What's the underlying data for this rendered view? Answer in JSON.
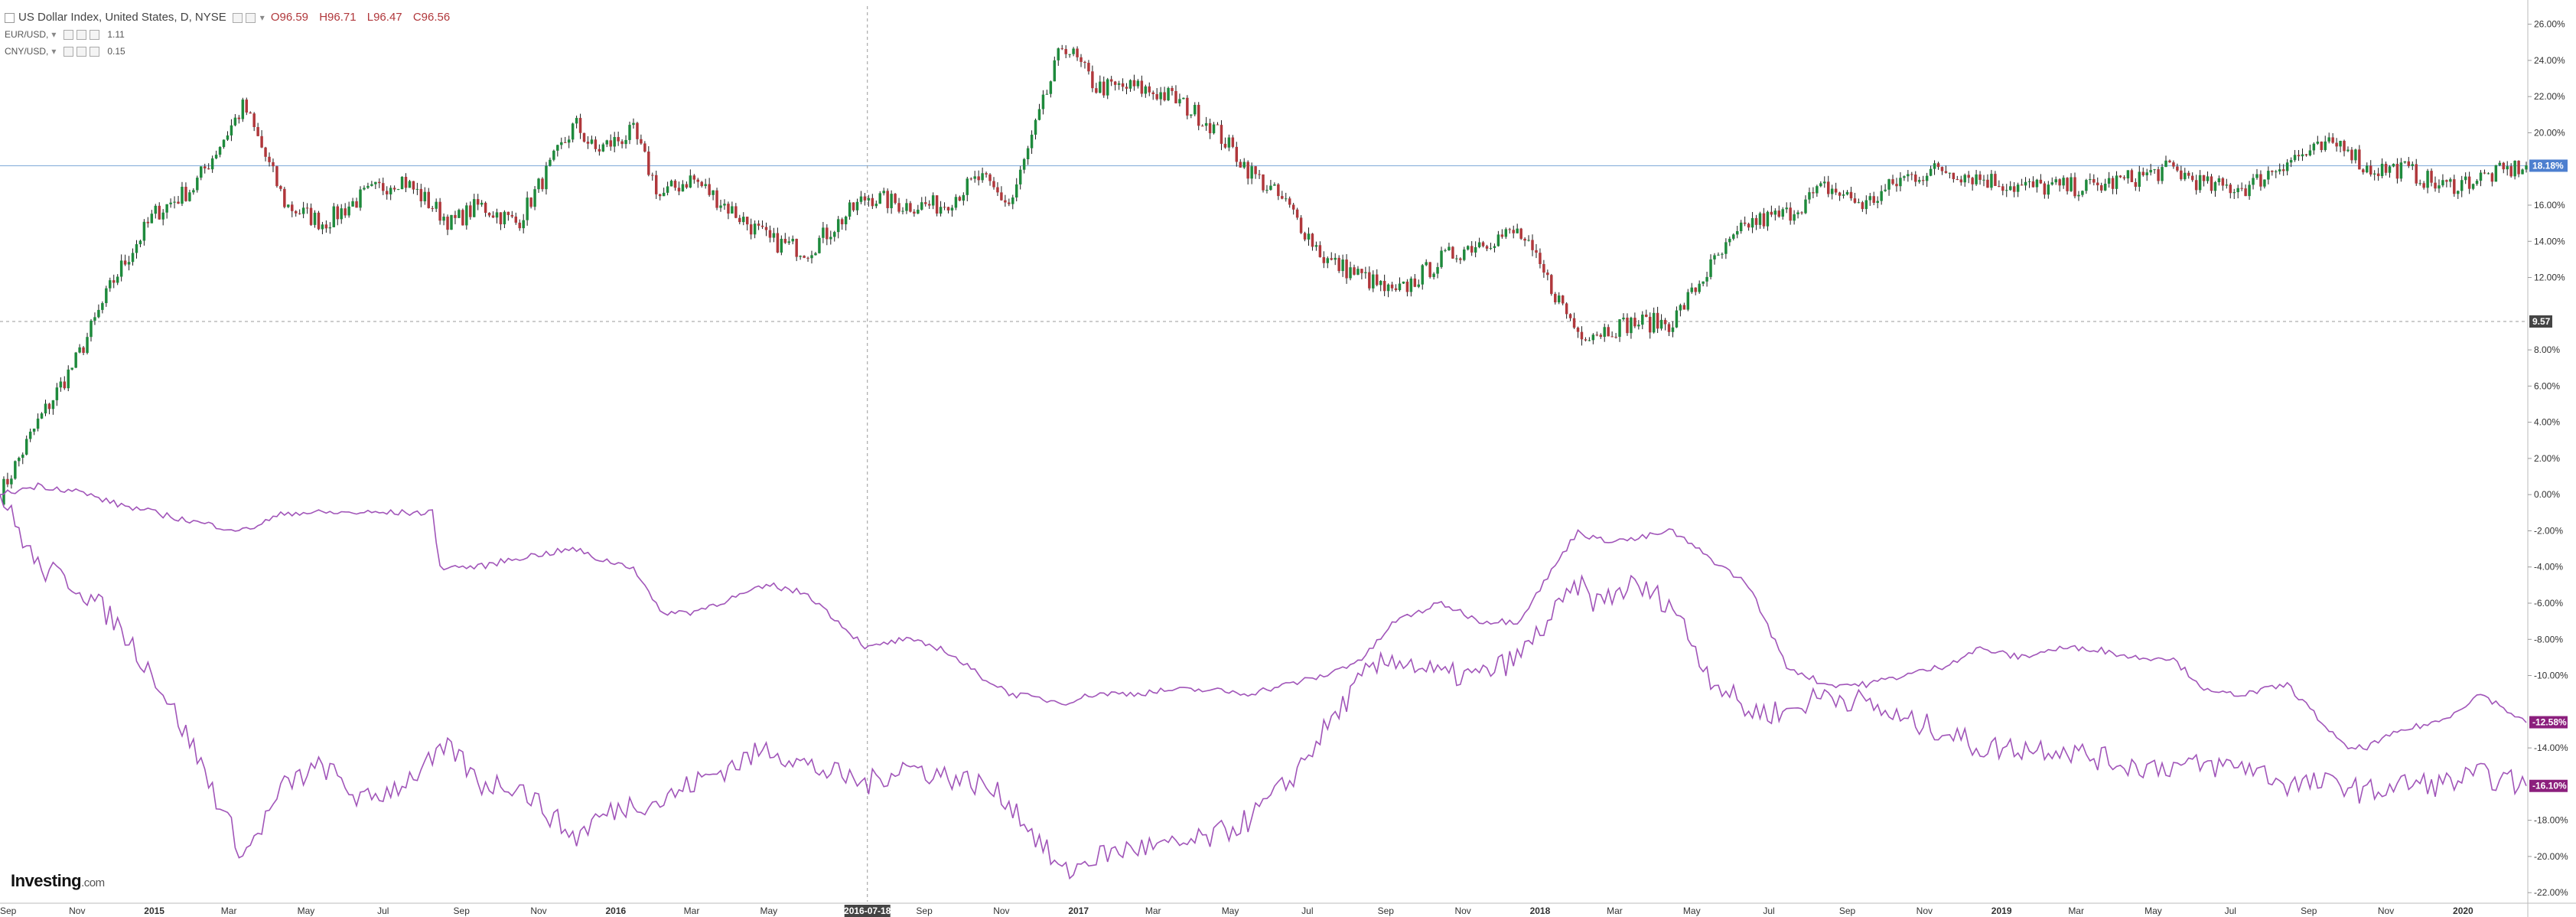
{
  "legend": {
    "symbol": "US Dollar Index, United States, D, NYSE",
    "ohlc": {
      "open": "O96.59",
      "high": "H96.71",
      "low": "L96.47",
      "close": "C96.56"
    },
    "compare": [
      {
        "name": "EUR/USD,",
        "value": "1.11"
      },
      {
        "name": "CNY/USD,",
        "value": "0.15"
      }
    ]
  },
  "logo": {
    "brand": "Investing",
    "suffix": ".com"
  },
  "colors": {
    "up": "#1e8a3c",
    "down": "#b0373b",
    "compare": "#a155b9",
    "crosshair": "#9a9a9a",
    "last_line": "#8fb4dd",
    "last_tag": "#4d7fcf",
    "cmp_tag": "#8c1f7d",
    "cross_tag": "#444444"
  },
  "chart_data": {
    "type": "line",
    "title": "",
    "xlabel": "",
    "ylabel": "",
    "y_unit": "%",
    "ylim": [
      -22.5,
      27
    ],
    "xlim": [
      "2014-09-01",
      "2020-02-20"
    ],
    "grid": false,
    "x_ticks": [
      {
        "label": "Sep",
        "date": "2014-09-01"
      },
      {
        "label": "Nov",
        "date": "2014-11-01"
      },
      {
        "label": "2015",
        "date": "2015-01-01"
      },
      {
        "label": "Mar",
        "date": "2015-03-01"
      },
      {
        "label": "May",
        "date": "2015-05-01"
      },
      {
        "label": "Jul",
        "date": "2015-07-01"
      },
      {
        "label": "Sep",
        "date": "2015-09-01"
      },
      {
        "label": "Nov",
        "date": "2015-11-01"
      },
      {
        "label": "2016",
        "date": "2016-01-01"
      },
      {
        "label": "Mar",
        "date": "2016-03-01"
      },
      {
        "label": "May",
        "date": "2016-05-01"
      },
      {
        "label": "Sep",
        "date": "2016-09-01"
      },
      {
        "label": "Nov",
        "date": "2016-11-01"
      },
      {
        "label": "2017",
        "date": "2017-01-01"
      },
      {
        "label": "Mar",
        "date": "2017-03-01"
      },
      {
        "label": "May",
        "date": "2017-05-01"
      },
      {
        "label": "Jul",
        "date": "2017-07-01"
      },
      {
        "label": "Sep",
        "date": "2017-09-01"
      },
      {
        "label": "Nov",
        "date": "2017-11-01"
      },
      {
        "label": "2018",
        "date": "2018-01-01"
      },
      {
        "label": "Mar",
        "date": "2018-03-01"
      },
      {
        "label": "May",
        "date": "2018-05-01"
      },
      {
        "label": "Jul",
        "date": "2018-07-01"
      },
      {
        "label": "Sep",
        "date": "2018-09-01"
      },
      {
        "label": "Nov",
        "date": "2018-11-01"
      },
      {
        "label": "2019",
        "date": "2019-01-01"
      },
      {
        "label": "Mar",
        "date": "2019-03-01"
      },
      {
        "label": "May",
        "date": "2019-05-01"
      },
      {
        "label": "Jul",
        "date": "2019-07-01"
      },
      {
        "label": "Sep",
        "date": "2019-09-01"
      },
      {
        "label": "Nov",
        "date": "2019-11-01"
      },
      {
        "label": "2020",
        "date": "2020-01-01"
      }
    ],
    "y_ticks": [
      {
        "label": "-22.00%",
        "value": -22
      },
      {
        "label": "-20.00%",
        "value": -20
      },
      {
        "label": "-18.00%",
        "value": -18
      },
      {
        "label": "-14.00%",
        "value": -14
      },
      {
        "label": "-10.00%",
        "value": -10
      },
      {
        "label": "-8.00%",
        "value": -8
      },
      {
        "label": "-6.00%",
        "value": -6
      },
      {
        "label": "-4.00%",
        "value": -4
      },
      {
        "label": "-2.00%",
        "value": -2
      },
      {
        "label": "0.00%",
        "value": 0
      },
      {
        "label": "2.00%",
        "value": 2
      },
      {
        "label": "4.00%",
        "value": 4
      },
      {
        "label": "6.00%",
        "value": 6
      },
      {
        "label": "8.00%",
        "value": 8
      },
      {
        "label": "12.00%",
        "value": 12
      },
      {
        "label": "14.00%",
        "value": 14
      },
      {
        "label": "16.00%",
        "value": 16
      },
      {
        "label": "20.00%",
        "value": 20
      },
      {
        "label": "22.00%",
        "value": 22
      },
      {
        "label": "24.00%",
        "value": 24
      },
      {
        "label": "26.00%",
        "value": 26
      }
    ],
    "crosshair": {
      "date": "2016-07-18",
      "date_label": "2016-07-18",
      "value": 9.57,
      "value_label": "9.57"
    },
    "last_value_tags": [
      {
        "label": "18.18%",
        "value": 18.18,
        "kind": "main"
      },
      {
        "label": "-12.58%",
        "value": -12.58,
        "kind": "compare"
      },
      {
        "label": "-16.10%",
        "value": -16.1,
        "kind": "compare"
      }
    ],
    "series": [
      {
        "name": "US Dollar Index, United States, D, NYSE",
        "style": "candlestick",
        "x": [
          "2014-09-01",
          "2014-10-01",
          "2014-11-01",
          "2014-12-01",
          "2015-01-01",
          "2015-02-01",
          "2015-03-13",
          "2015-04-15",
          "2015-05-15",
          "2015-06-15",
          "2015-07-15",
          "2015-08-24",
          "2015-09-15",
          "2015-10-15",
          "2015-11-30",
          "2015-12-15",
          "2016-01-15",
          "2016-02-05",
          "2016-03-01",
          "2016-05-02",
          "2016-06-01",
          "2016-07-18",
          "2016-08-15",
          "2016-09-15",
          "2016-10-15",
          "2016-11-08",
          "2016-12-20",
          "2017-01-15",
          "2017-02-15",
          "2017-03-15",
          "2017-04-15",
          "2017-05-15",
          "2017-06-15",
          "2017-07-15",
          "2017-08-15",
          "2017-09-08",
          "2017-10-15",
          "2017-11-15",
          "2017-12-15",
          "2018-01-31",
          "2018-02-15",
          "2018-03-15",
          "2018-04-15",
          "2018-05-15",
          "2018-06-15",
          "2018-07-15",
          "2018-08-15",
          "2018-09-15",
          "2018-10-15",
          "2018-11-15",
          "2018-12-15",
          "2019-01-15",
          "2019-02-15",
          "2019-03-15",
          "2019-04-15",
          "2019-05-15",
          "2019-06-15",
          "2019-07-15",
          "2019-08-15",
          "2019-09-30",
          "2019-10-15",
          "2019-11-15",
          "2019-12-15",
          "2020-01-15",
          "2020-02-20"
        ],
        "values": [
          0,
          4,
          7.5,
          12,
          15.5,
          17,
          21.5,
          16,
          15,
          16.5,
          17.5,
          15,
          16,
          15,
          20.5,
          19,
          20,
          16.5,
          17.5,
          14,
          13.5,
          16.5,
          16,
          16,
          17.5,
          16,
          25,
          22.5,
          22.5,
          22,
          20.5,
          18,
          16,
          13,
          12,
          11,
          13,
          14,
          14.5,
          9,
          9,
          9.5,
          9.5,
          12.5,
          15,
          15.5,
          17,
          16,
          17.5,
          18,
          17.5,
          17,
          17,
          17,
          17.5,
          18,
          17,
          17,
          18.5,
          19.5,
          18,
          18,
          17,
          17.5,
          18.2
        ]
      },
      {
        "name": "EUR/USD,",
        "style": "line",
        "x": [
          "2014-09-01",
          "2014-10-01",
          "2014-11-01",
          "2014-12-01",
          "2015-01-01",
          "2015-02-01",
          "2015-03-13",
          "2015-04-15",
          "2015-05-15",
          "2015-06-15",
          "2015-07-15",
          "2015-08-24",
          "2015-09-15",
          "2015-10-15",
          "2015-11-30",
          "2015-12-15",
          "2016-01-15",
          "2016-02-05",
          "2016-03-01",
          "2016-05-02",
          "2016-06-01",
          "2016-07-18",
          "2016-08-15",
          "2016-09-15",
          "2016-10-15",
          "2016-11-08",
          "2016-12-20",
          "2017-01-15",
          "2017-02-15",
          "2017-03-15",
          "2017-04-15",
          "2017-05-15",
          "2017-06-15",
          "2017-07-15",
          "2017-08-15",
          "2017-09-08",
          "2017-10-15",
          "2017-11-15",
          "2017-12-15",
          "2018-01-31",
          "2018-02-15",
          "2018-03-15",
          "2018-04-15",
          "2018-05-15",
          "2018-06-15",
          "2018-07-15",
          "2018-08-15",
          "2018-09-15",
          "2018-10-15",
          "2018-11-15",
          "2018-12-15",
          "2019-01-15",
          "2019-02-15",
          "2019-03-15",
          "2019-04-15",
          "2019-05-15",
          "2019-06-15",
          "2019-07-15",
          "2019-08-15",
          "2019-09-30",
          "2019-10-15",
          "2019-11-15",
          "2019-12-15",
          "2020-01-15",
          "2020-02-20"
        ],
        "values": [
          0,
          -4,
          -5,
          -7,
          -10,
          -14,
          -20,
          -16,
          -15,
          -17,
          -16,
          -14,
          -16,
          -16,
          -19,
          -18,
          -17,
          -17,
          -16,
          -14,
          -15,
          -16,
          -15,
          -15.5,
          -16,
          -17,
          -21,
          -20,
          -19.5,
          -19.5,
          -19,
          -18,
          -16,
          -13,
          -10,
          -9,
          -10,
          -10,
          -9,
          -5,
          -6,
          -5,
          -6,
          -10,
          -12,
          -12,
          -11,
          -11.5,
          -12.5,
          -13,
          -14,
          -14,
          -14,
          -14.5,
          -15,
          -15,
          -15,
          -15,
          -16,
          -16,
          -16.5,
          -16,
          -16,
          -15.5,
          -16.1
        ]
      },
      {
        "name": "CNY/USD,",
        "style": "line",
        "x": [
          "2014-09-01",
          "2014-10-01",
          "2014-11-01",
          "2014-12-01",
          "2015-01-01",
          "2015-02-01",
          "2015-03-13",
          "2015-04-15",
          "2015-05-15",
          "2015-06-15",
          "2015-07-15",
          "2015-08-10",
          "2015-08-14",
          "2015-09-15",
          "2015-10-15",
          "2015-11-30",
          "2015-12-15",
          "2016-01-15",
          "2016-02-05",
          "2016-03-01",
          "2016-05-02",
          "2016-06-01",
          "2016-07-18",
          "2016-08-15",
          "2016-09-15",
          "2016-10-15",
          "2016-11-08",
          "2016-12-20",
          "2017-01-15",
          "2017-02-15",
          "2017-03-15",
          "2017-04-15",
          "2017-05-15",
          "2017-06-15",
          "2017-07-15",
          "2017-08-15",
          "2017-09-08",
          "2017-10-15",
          "2017-11-15",
          "2017-12-15",
          "2018-01-31",
          "2018-02-15",
          "2018-03-15",
          "2018-04-15",
          "2018-05-15",
          "2018-06-15",
          "2018-07-15",
          "2018-08-15",
          "2018-09-15",
          "2018-10-15",
          "2018-11-15",
          "2018-12-15",
          "2019-01-15",
          "2019-02-15",
          "2019-03-15",
          "2019-04-15",
          "2019-05-15",
          "2019-06-15",
          "2019-07-15",
          "2019-08-15",
          "2019-09-30",
          "2019-10-15",
          "2019-11-15",
          "2019-12-15",
          "2020-01-15",
          "2020-02-20"
        ],
        "values": [
          0,
          0.5,
          0.2,
          -0.5,
          -1,
          -1.5,
          -2,
          -1,
          -1,
          -1,
          -1,
          -1,
          -4,
          -4,
          -3.5,
          -3,
          -3.5,
          -4,
          -6.5,
          -6.5,
          -5,
          -5.5,
          -8.5,
          -8,
          -8.5,
          -10,
          -11,
          -11.5,
          -11,
          -11,
          -10.8,
          -10.8,
          -11,
          -10.5,
          -10,
          -9,
          -7,
          -6,
          -7,
          -7,
          -2,
          -2.5,
          -2.5,
          -2,
          -3.5,
          -5,
          -9.5,
          -10.5,
          -10.5,
          -10,
          -9.5,
          -8.5,
          -9,
          -8.5,
          -8.5,
          -9,
          -9,
          -11,
          -11,
          -10.5,
          -14,
          -14,
          -13,
          -12.5,
          -11,
          -12.6
        ]
      }
    ]
  }
}
